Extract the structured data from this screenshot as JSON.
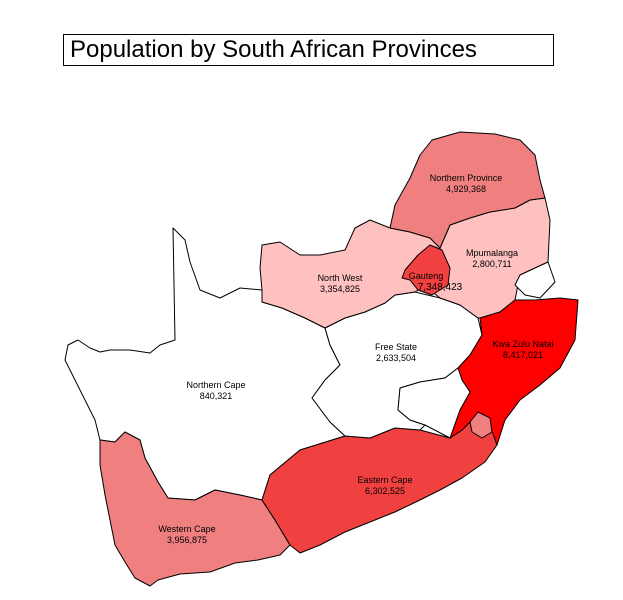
{
  "title": "Population by South African Provinces",
  "colors": {
    "lowest": "#ffffff",
    "low": "#ffc0c0",
    "mid": "#f08080",
    "high": "#f04040",
    "highest": "#ff0000"
  },
  "provinces": [
    {
      "id": "northern-cape",
      "name": "Northern Cape",
      "population": "840,321",
      "shade": "lowest"
    },
    {
      "id": "free-state",
      "name": "Free State",
      "population": "2,633,504",
      "shade": "lowest"
    },
    {
      "id": "mpumalanga",
      "name": "Mpumalanga",
      "population": "2,800,711",
      "shade": "low"
    },
    {
      "id": "north-west",
      "name": "North West",
      "population": "3,354,825",
      "shade": "low"
    },
    {
      "id": "western-cape",
      "name": "Western Cape",
      "population": "3,956,875",
      "shade": "mid"
    },
    {
      "id": "northern-province",
      "name": "Northern Province",
      "population": "4,929,368",
      "shade": "mid"
    },
    {
      "id": "eastern-cape",
      "name": "Eastern Cape",
      "population": "6,302,525",
      "shade": "high"
    },
    {
      "id": "gauteng",
      "name": "Gauteng",
      "population": "7,348,423",
      "shade": "high"
    },
    {
      "id": "kwazulu-natal",
      "name": "Kwa Zulu Natal",
      "population": "8,417,021",
      "shade": "highest"
    }
  ]
}
